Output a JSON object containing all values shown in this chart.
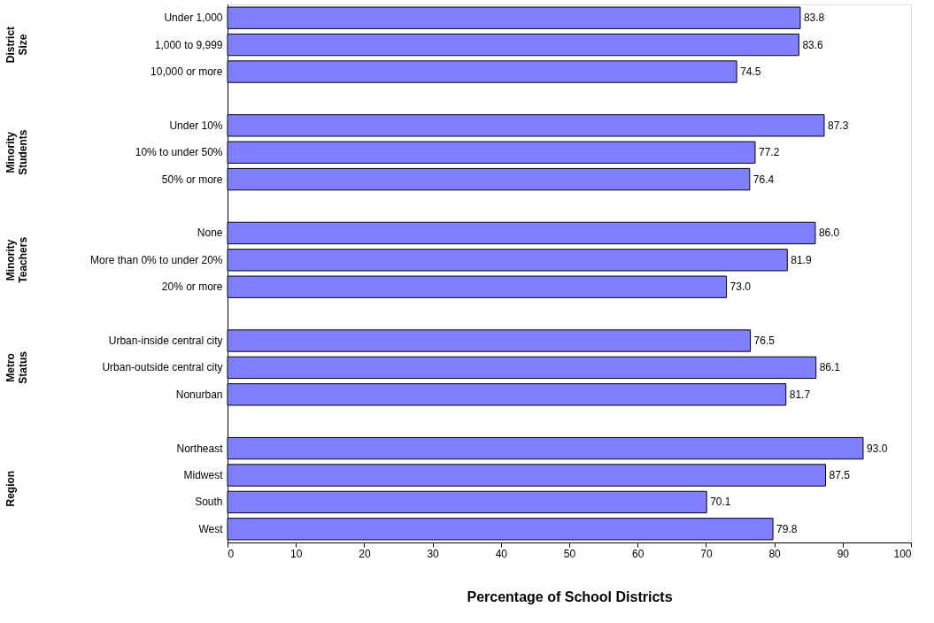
{
  "chart_data": {
    "type": "bar",
    "orientation": "horizontal",
    "categories": [
      "Under 1,000",
      "1,000 to 9,999",
      "10,000 or more",
      null,
      "Under 10%",
      "10% to under 50%",
      "50% or more",
      null,
      "None",
      "More than 0% to under 20%",
      "20% or more",
      null,
      "Urban-inside central city",
      "Urban-outside central city",
      "Nonurban",
      null,
      "Northeast",
      "Midwest ",
      "South ",
      "West"
    ],
    "values": [
      83.8,
      83.6,
      74.5,
      null,
      87.3,
      77.2,
      76.4,
      null,
      86.0,
      81.9,
      73.0,
      null,
      76.5,
      86.1,
      81.7,
      null,
      93.0,
      87.5,
      70.1,
      79.8
    ],
    "value_labels": [
      "83.8",
      "83.6",
      "74.5",
      null,
      "87.3",
      "77.2",
      "76.4",
      null,
      "86.0",
      "81.9",
      "73.0",
      null,
      "76.5",
      "86.1",
      "81.7",
      null,
      "93.0",
      "87.5",
      "70.1",
      "79.8"
    ],
    "color": "#8080ff",
    "xlim": [
      0,
      100
    ],
    "xticks": [
      0,
      10,
      20,
      30,
      40,
      50,
      60,
      70,
      80,
      90,
      100
    ],
    "xlabel": "Percentage of School Districts",
    "annotations": [
      "District Size",
      "Minority Students",
      "Minority Teachers",
      "Metro Status",
      "Region"
    ],
    "grid": false
  }
}
